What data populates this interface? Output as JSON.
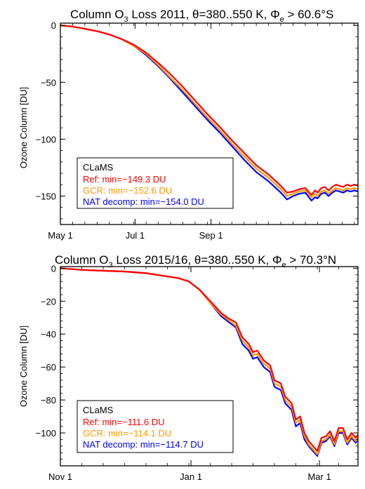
{
  "chart_data": [
    {
      "type": "line",
      "title": {
        "main": "Column O",
        "sub_o3": "3",
        "mid": " Loss 2011, θ=380..550 K, Φ",
        "sub_e": "e",
        "tail": " > 60.6°S"
      },
      "ylabel": "Ozone Column [DU]",
      "xlabel": "",
      "ylim": [
        -175,
        2
      ],
      "xlim": [
        0,
        243
      ],
      "x_unit": "days since May 1, 2011",
      "yticks": [
        0,
        -50,
        -100,
        -150
      ],
      "ytick_labels": [
        "0",
        "−50",
        "−100",
        "−150"
      ],
      "xticks": [
        0,
        61,
        123
      ],
      "xtick_labels": [
        "May 1",
        "Jul 1",
        "Sep 1"
      ],
      "legend": {
        "placement": "bottom-left",
        "title": "CLaMS",
        "entries": [
          "Ref: min=−149.3 DU",
          "GCR: min=−152.6 DU",
          "NAT decomp: min=−154.0 DU"
        ]
      },
      "series": [
        {
          "name": "Ref",
          "color": "#ff0000",
          "x": [
            0,
            10,
            20,
            30,
            40,
            50,
            60,
            70,
            80,
            90,
            100,
            110,
            120,
            130,
            140,
            150,
            160,
            170,
            180,
            185,
            190,
            195,
            200,
            205,
            208,
            210,
            213,
            216,
            219,
            222,
            225,
            228,
            231,
            234,
            237,
            240,
            243
          ],
          "y": [
            0,
            -1,
            -3,
            -5,
            -8,
            -12,
            -17,
            -24,
            -33,
            -43,
            -54,
            -66,
            -78,
            -89,
            -101,
            -112,
            -123,
            -131,
            -141,
            -147,
            -146,
            -144,
            -143,
            -149,
            -145,
            -147,
            -143,
            -142,
            -145,
            -142,
            -140,
            -141,
            -142,
            -140,
            -141,
            -140,
            -141
          ]
        },
        {
          "name": "GCR",
          "color": "#ff9900",
          "x": [
            0,
            10,
            20,
            30,
            40,
            50,
            60,
            70,
            80,
            90,
            100,
            110,
            120,
            130,
            140,
            150,
            160,
            170,
            180,
            185,
            190,
            195,
            200,
            205,
            208,
            210,
            213,
            216,
            219,
            222,
            225,
            228,
            231,
            234,
            237,
            240,
            243
          ],
          "y": [
            0,
            -1,
            -3,
            -5,
            -8,
            -12,
            -18,
            -25,
            -35,
            -46,
            -57,
            -69,
            -81,
            -92,
            -104,
            -115,
            -126,
            -134,
            -144,
            -150,
            -148,
            -146,
            -145,
            -151,
            -148,
            -150,
            -146,
            -145,
            -148,
            -145,
            -143,
            -144,
            -145,
            -143,
            -144,
            -143,
            -144
          ]
        },
        {
          "name": "NAT decomp",
          "color": "#0000ff",
          "x": [
            0,
            10,
            20,
            30,
            40,
            50,
            60,
            70,
            80,
            90,
            100,
            110,
            120,
            130,
            140,
            150,
            160,
            170,
            180,
            185,
            190,
            195,
            200,
            205,
            208,
            210,
            213,
            216,
            219,
            222,
            225,
            228,
            231,
            234,
            237,
            240,
            243
          ],
          "y": [
            0,
            -1,
            -3,
            -5,
            -8,
            -12,
            -18,
            -26,
            -36,
            -47,
            -59,
            -71,
            -83,
            -94,
            -106,
            -118,
            -129,
            -137,
            -147,
            -153,
            -150,
            -148,
            -147,
            -154,
            -151,
            -152,
            -148,
            -147,
            -150,
            -147,
            -145,
            -146,
            -147,
            -145,
            -146,
            -145,
            -146
          ]
        }
      ]
    },
    {
      "type": "line",
      "title": {
        "main": "Column O",
        "sub_o3": "3",
        "mid": " Loss 2015/16, θ=380..550 K, Φ",
        "sub_e": "e",
        "tail": " > 70.3°N"
      },
      "ylabel": "Ozone Column [DU]",
      "xlabel": "",
      "ylim": [
        -120,
        1
      ],
      "xlim": [
        0,
        139
      ],
      "x_unit": "days since Nov 1, 2015",
      "yticks": [
        0,
        -20,
        -40,
        -60,
        -80,
        -100
      ],
      "ytick_labels": [
        "0",
        "−20",
        "−40",
        "−60",
        "−80",
        "−100"
      ],
      "xticks": [
        0,
        61,
        121
      ],
      "xtick_labels": [
        "Nov 1",
        "Jan 1",
        "Mar 1"
      ],
      "legend": {
        "placement": "bottom-left",
        "title": "CLaMS",
        "entries": [
          "Ref: min=−111.6 DU",
          "GCR: min=−114.1 DU",
          "NAT decomp: min=−114.7 DU"
        ]
      },
      "series": [
        {
          "name": "Ref",
          "color": "#ff0000",
          "x": [
            0,
            10,
            20,
            30,
            40,
            45,
            50,
            55,
            60,
            65,
            70,
            75,
            78,
            82,
            85,
            88,
            90,
            92,
            95,
            98,
            100,
            103,
            105,
            108,
            110,
            112,
            114,
            116,
            118,
            120,
            122,
            124,
            126,
            128,
            130,
            132,
            134,
            136,
            138,
            139
          ],
          "y": [
            0,
            -1,
            -1.5,
            -2,
            -3,
            -4,
            -5,
            -6,
            -8,
            -13,
            -20,
            -27,
            -30,
            -33,
            -42,
            -46,
            -51,
            -50,
            -56,
            -59,
            -68,
            -70,
            -78,
            -82,
            -92,
            -90,
            -100,
            -105,
            -108,
            -111,
            -103,
            -102,
            -99,
            -105,
            -97,
            -97,
            -104,
            -100,
            -103,
            -101
          ]
        },
        {
          "name": "GCR",
          "color": "#ff9900",
          "x": [
            0,
            10,
            20,
            30,
            40,
            45,
            50,
            55,
            60,
            65,
            70,
            75,
            78,
            82,
            85,
            88,
            90,
            92,
            95,
            98,
            100,
            103,
            105,
            108,
            110,
            112,
            114,
            116,
            118,
            120,
            122,
            124,
            126,
            128,
            130,
            132,
            134,
            136,
            138,
            139
          ],
          "y": [
            0,
            -1,
            -1.5,
            -2,
            -3,
            -4,
            -5,
            -6,
            -8,
            -13,
            -21,
            -28,
            -31,
            -35,
            -44,
            -48,
            -53,
            -52,
            -58,
            -61,
            -70,
            -72,
            -80,
            -84,
            -94,
            -92,
            -102,
            -107,
            -110,
            -113,
            -105,
            -104,
            -101,
            -107,
            -99,
            -99,
            -106,
            -102,
            -105,
            -103
          ]
        },
        {
          "name": "NAT decomp",
          "color": "#0000ff",
          "x": [
            0,
            10,
            20,
            30,
            40,
            45,
            50,
            55,
            60,
            65,
            70,
            75,
            78,
            82,
            85,
            88,
            90,
            92,
            95,
            98,
            100,
            103,
            105,
            108,
            110,
            112,
            114,
            116,
            118,
            120,
            122,
            124,
            126,
            128,
            130,
            132,
            134,
            136,
            138,
            139
          ],
          "y": [
            0,
            -1,
            -1.5,
            -2,
            -3,
            -4,
            -5,
            -6,
            -8,
            -13,
            -21,
            -29,
            -32,
            -36,
            -46,
            -50,
            -55,
            -54,
            -60,
            -63,
            -72,
            -74,
            -82,
            -86,
            -96,
            -94,
            -104,
            -108,
            -111,
            -114,
            -106,
            -105,
            -102,
            -108,
            -100,
            -100,
            -107,
            -103,
            -106,
            -104
          ]
        }
      ]
    }
  ]
}
